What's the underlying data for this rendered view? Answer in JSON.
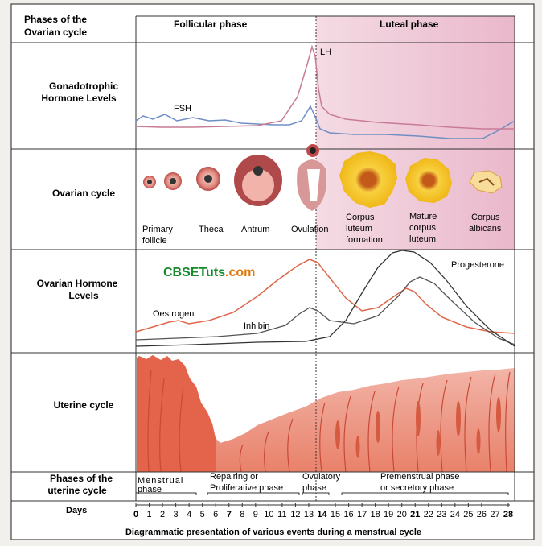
{
  "header": {
    "phases_label_line1": "Phases of the",
    "phases_label_line2": "Ovarian cycle",
    "follicular": "Follicular phase",
    "luteal": "Luteal phase"
  },
  "rows": {
    "gonadotrophic_line1": "Gonadotrophic",
    "gonadotrophic_line2": "Hormone Levels",
    "ovarian_cycle": "Ovarian cycle",
    "ovarian_hormone_line1": "Ovarian Hormone",
    "ovarian_hormone_line2": "Levels",
    "uterine_cycle": "Uterine cycle",
    "uterine_phases_line1": "Phases of the",
    "uterine_phases_line2": "uterine cycle"
  },
  "hormone_labels": {
    "fsh": "FSH",
    "lh": "LH",
    "oestrogen": "Oestrogen",
    "inhibin": "Inhibin",
    "progesterone": "Progesterone"
  },
  "ovary_stages": [
    {
      "line1": "Primary",
      "line2": "follicle",
      "line3": ""
    },
    {
      "line1": "Theca",
      "line2": "",
      "line3": ""
    },
    {
      "line1": "Antrum",
      "line2": "",
      "line3": ""
    },
    {
      "line1": "Ovulation",
      "line2": "",
      "line3": ""
    },
    {
      "line1": "Corpus",
      "line2": "luteum",
      "line3": "formation"
    },
    {
      "line1": "Mature",
      "line2": "corpus",
      "line3": "luteum"
    },
    {
      "line1": "Corpus",
      "line2": "albicans",
      "line3": ""
    }
  ],
  "watermark": {
    "part1": "CBSETuts",
    "part2": ".com"
  },
  "uterine_phases": {
    "menstrual_line1": "Menstrual",
    "menstrual_line2": "phase",
    "repair_line1": "Repairing or",
    "repair_line2": "Proliferative phase",
    "ovulatory_line1": "Ovulatory",
    "ovulatory_line2": "phase",
    "premenstrual_line1": "Premenstrual phase",
    "premenstrual_line2": "or secretory phase"
  },
  "days_label": "Days",
  "days": [
    "0",
    "1",
    "2",
    "3",
    "4",
    "5",
    "6",
    "7",
    "8",
    "9",
    "10",
    "11",
    "12",
    "13",
    "14",
    "15",
    "16",
    "17",
    "18",
    "19",
    "20",
    "21",
    "22",
    "23",
    "24",
    "25",
    "26",
    "27",
    "28"
  ],
  "bold_days": [
    "0",
    "7",
    "14",
    "21",
    "28"
  ],
  "caption": "Diagrammatic presentation of various events during a menstrual cycle",
  "colors": {
    "luteal_bg": "#f1d3de",
    "fsh": "#6f8fc4",
    "lh": "#c77b96",
    "oestrogen": "#e0664a",
    "inhibin": "#555555",
    "progesterone": "#333333",
    "endometrium": "#e6735a",
    "yellow_body": "#f5c21f",
    "watermark_green": "#1a8a2e",
    "watermark_orange": "#e07a10"
  }
}
